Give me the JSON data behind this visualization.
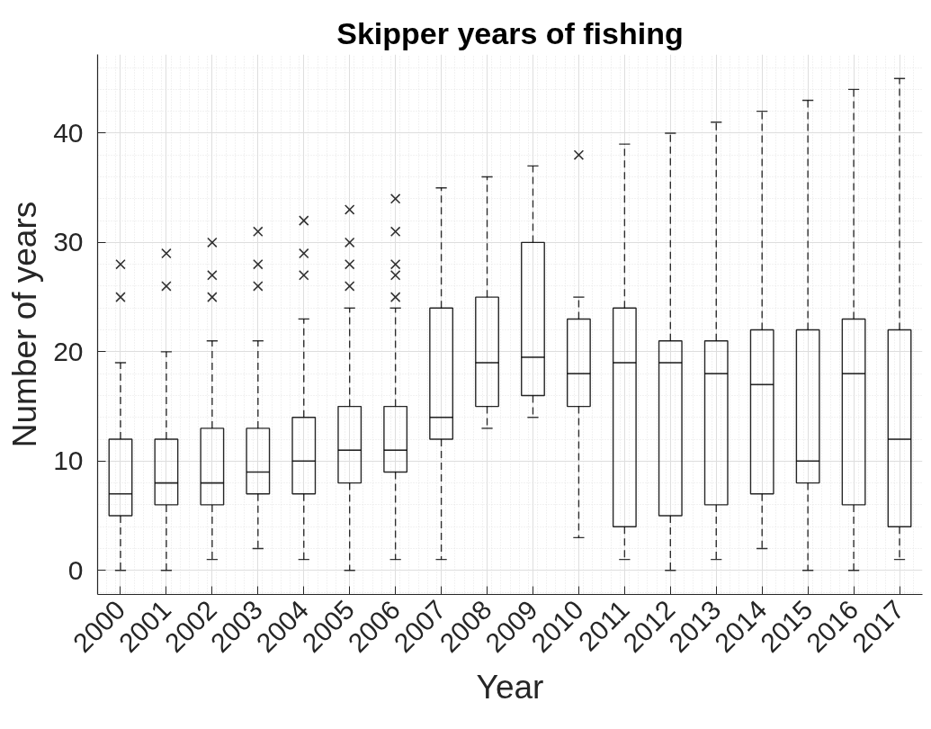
{
  "chart_data": {
    "type": "box",
    "title": "Skipper years of fishing",
    "xlabel": "Year",
    "ylabel": "Number of years",
    "categories": [
      "2000",
      "2001",
      "2002",
      "2003",
      "2004",
      "2005",
      "2006",
      "2007",
      "2008",
      "2009",
      "2010",
      "2011",
      "2012",
      "2013",
      "2014",
      "2015",
      "2016",
      "2017"
    ],
    "series": [
      {
        "color": "#000000",
        "boxes": [
          {
            "low": 0,
            "q1": 5,
            "median": 7,
            "q3": 12,
            "high": 19,
            "outliers": [
              25,
              28
            ]
          },
          {
            "low": 0,
            "q1": 6,
            "median": 8,
            "q3": 12,
            "high": 20,
            "outliers": [
              26,
              29
            ]
          },
          {
            "low": 1,
            "q1": 6,
            "median": 8,
            "q3": 13,
            "high": 21,
            "outliers": [
              25,
              27,
              30
            ]
          },
          {
            "low": 2,
            "q1": 7,
            "median": 9,
            "q3": 13,
            "high": 21,
            "outliers": [
              26,
              28,
              31
            ]
          },
          {
            "low": 1,
            "q1": 7,
            "median": 10,
            "q3": 14,
            "high": 23,
            "outliers": [
              27,
              29,
              32
            ]
          },
          {
            "low": 0,
            "q1": 8,
            "median": 11,
            "q3": 15,
            "high": 24,
            "outliers": [
              26,
              28,
              30,
              33
            ]
          },
          {
            "low": 1,
            "q1": 9,
            "median": 11,
            "q3": 15,
            "high": 24,
            "outliers": [
              25,
              27,
              28,
              31,
              34
            ]
          },
          {
            "low": 1,
            "q1": 12,
            "median": 14,
            "q3": 24,
            "high": 35
          },
          {
            "low": 13,
            "q1": 15,
            "median": 19,
            "q3": 25,
            "high": 36
          },
          {
            "low": 14,
            "q1": 16,
            "median": 19.5,
            "q3": 30,
            "high": 37
          },
          {
            "low": 3,
            "q1": 15,
            "median": 18,
            "q3": 23,
            "high": 25,
            "outliers": [
              38
            ]
          },
          {
            "low": 1,
            "q1": 4,
            "median": 19,
            "q3": 24,
            "high": 39
          },
          {
            "low": 0,
            "q1": 5,
            "median": 19,
            "q3": 21,
            "high": 40
          },
          {
            "low": 1,
            "q1": 6,
            "median": 18,
            "q3": 21,
            "high": 41
          },
          {
            "low": 2,
            "q1": 7,
            "median": 17,
            "q3": 22,
            "high": 42
          },
          {
            "low": 0,
            "q1": 8,
            "median": 10,
            "q3": 22,
            "high": 43
          },
          {
            "low": 0,
            "q1": 6,
            "median": 18,
            "q3": 23,
            "high": 44
          },
          {
            "low": 1,
            "q1": 4,
            "median": 12,
            "q3": 22,
            "high": 45
          }
        ]
      }
    ],
    "ylim": [
      -2.2,
      47.2
    ],
    "yticks": [
      0,
      10,
      20,
      30,
      40
    ],
    "grid": true,
    "marker": "cross",
    "line_style": "dashed"
  }
}
